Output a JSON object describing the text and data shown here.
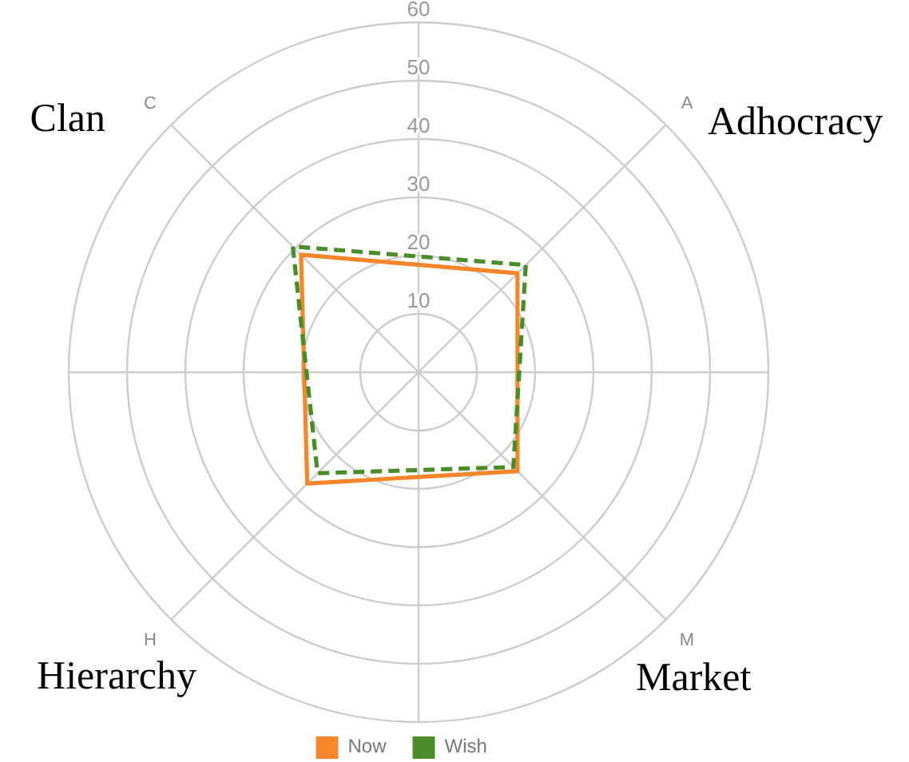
{
  "chart_data": {
    "type": "radar",
    "categories": [
      "A",
      "M",
      "H",
      "C"
    ],
    "ylim": [
      0,
      60
    ],
    "yticks": [
      10,
      20,
      30,
      40,
      50,
      60
    ],
    "grid": true,
    "legend": "bottom",
    "marker": "none",
    "series": [
      {
        "name": "Now",
        "color": "#f7862a",
        "values": [
          24,
          24,
          27,
          28.5
        ],
        "line_style": "solid"
      },
      {
        "name": "Wish",
        "color": "#4a8c2a",
        "values": [
          26,
          23,
          24.5,
          30.5
        ],
        "line_style": "dashed"
      }
    ],
    "annotations": [
      "Adhocracy",
      "Market",
      "Hierarchy",
      "Clan"
    ]
  }
}
